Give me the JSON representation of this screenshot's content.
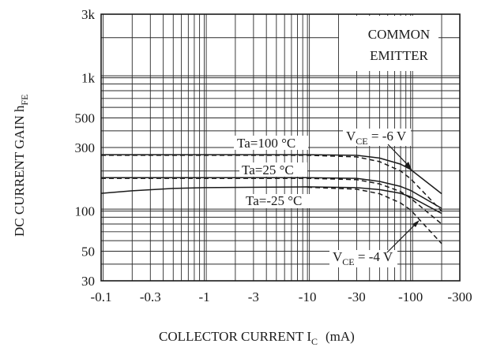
{
  "chart_data": {
    "type": "line",
    "xscale": "log",
    "yscale": "log",
    "xlim": [
      -0.1,
      -300
    ],
    "ylim": [
      30,
      3000
    ],
    "xlabel": {
      "main": "COLLECTOR CURRENT I",
      "sub": "C",
      "unit": "(mA)"
    },
    "ylabel": {
      "main": "DC CURRENT GAIN h",
      "sub": "FE"
    },
    "x_ticks": [
      {
        "value": -0.1,
        "label": "-0.1"
      },
      {
        "value": -0.3,
        "label": "-0.3"
      },
      {
        "value": -1,
        "label": "-1"
      },
      {
        "value": -3,
        "label": "-3"
      },
      {
        "value": -10,
        "label": "-10"
      },
      {
        "value": -30,
        "label": "-30"
      },
      {
        "value": -100,
        "label": "-100"
      },
      {
        "value": -300,
        "label": "-300"
      }
    ],
    "y_ticks": [
      {
        "value": 30,
        "label": "30"
      },
      {
        "value": 50,
        "label": "50"
      },
      {
        "value": 100,
        "label": "100"
      },
      {
        "value": 300,
        "label": "300"
      },
      {
        "value": 500,
        "label": "500"
      },
      {
        "value": 1000,
        "label": "1k"
      },
      {
        "value": 3000,
        "label": "3k"
      }
    ],
    "grid": true,
    "conditions": {
      "line1": "COMMON",
      "line2": "EMITTER"
    },
    "series": [
      {
        "name": "Ta=100°C",
        "vce": "-6 V",
        "style": "solid",
        "x": [
          -0.1,
          -1,
          -10,
          -30,
          -50,
          -80,
          -100,
          -200
        ],
        "y": [
          265,
          265,
          265,
          262,
          250,
          225,
          205,
          135
        ]
      },
      {
        "name": "Ta=100°C",
        "vce": "-4 V",
        "style": "dashed",
        "x": [
          -0.1,
          -1,
          -10,
          -30,
          -50,
          -80,
          -100,
          -200
        ],
        "y": [
          262,
          262,
          262,
          255,
          235,
          200,
          175,
          100
        ]
      },
      {
        "name": "Ta=25°C",
        "vce": "-6 V",
        "style": "solid",
        "x": [
          -0.1,
          -1,
          -10,
          -30,
          -50,
          -80,
          -100,
          -200
        ],
        "y": [
          178,
          178,
          178,
          176,
          167,
          153,
          143,
          105
        ]
      },
      {
        "name": "Ta=25°C",
        "vce": "-4 V",
        "style": "dashed",
        "x": [
          -0.1,
          -1,
          -10,
          -30,
          -50,
          -80,
          -100,
          -200
        ],
        "y": [
          176,
          176,
          176,
          172,
          160,
          140,
          125,
          80
        ]
      },
      {
        "name": "Ta=-25°C",
        "vce": "-6 V",
        "style": "solid",
        "x": [
          -0.1,
          -0.2,
          -0.5,
          -1,
          -10,
          -30,
          -50,
          -80,
          -100,
          -200
        ],
        "y": [
          136,
          142,
          148,
          150,
          152,
          150,
          145,
          136,
          128,
          96
        ]
      },
      {
        "name": "Ta=-25°C",
        "vce": "-4 V",
        "style": "dashed",
        "x": [
          -10,
          -30,
          -50,
          -80,
          -100,
          -200
        ],
        "y": [
          151,
          146,
          135,
          115,
          102,
          57
        ]
      }
    ],
    "annotations": [
      {
        "text": "Ta=100 °C"
      },
      {
        "text": "Ta=25 °C"
      },
      {
        "text": "Ta=-25 °C"
      },
      {
        "main": "V",
        "sub": "CE",
        "rest": " = -6 V"
      },
      {
        "main": "V",
        "sub": "CE",
        "rest": " = -4 V"
      }
    ],
    "colors": {
      "line": "#1a1a1a",
      "grid": "#2a2a2a",
      "background": "#ffffff"
    }
  }
}
